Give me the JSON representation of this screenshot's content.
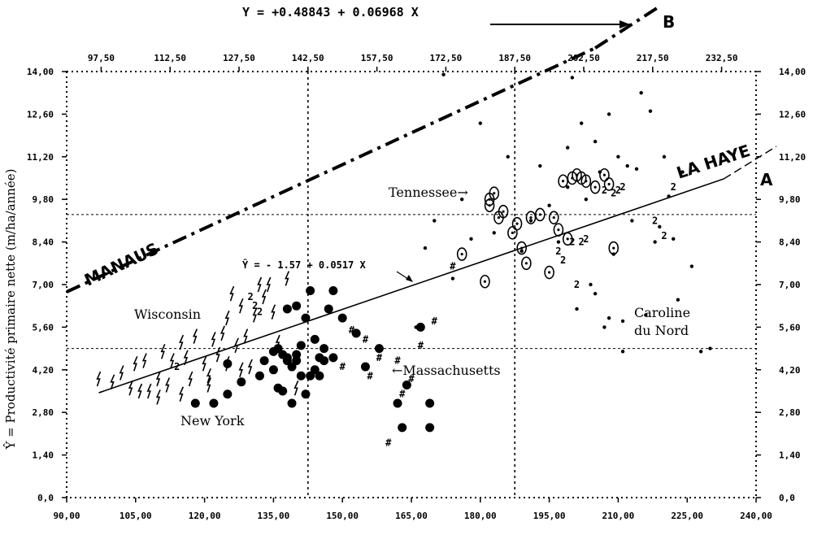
{
  "chart_data": {
    "type": "scatter",
    "title": "Y = +0.48843 + 0.06968 X",
    "ylabel": "Ŷ = Productivité primaire nette (m/ha/année)",
    "x_bottom_ticks": [
      "90,00",
      "105,00",
      "120,00",
      "135,00",
      "150,00",
      "165,00",
      "180,00",
      "195,00",
      "210,00",
      "225,00",
      "240,00"
    ],
    "x_top_ticks": [
      "97,50",
      "112,50",
      "127,50",
      "142,50",
      "157,50",
      "172,50",
      "187,50",
      "202,50",
      "217,50",
      "232,50"
    ],
    "y_ticks": [
      "0,0",
      "1,40",
      "2,80",
      "4,20",
      "5,60",
      "7,00",
      "8,40",
      "9,80",
      "11,20",
      "12,60",
      "14,00"
    ],
    "xlim": [
      90,
      240
    ],
    "ylim": [
      0,
      14
    ],
    "grid": {
      "vlines": [
        142.5,
        187.5
      ],
      "hlines": [
        4.9,
        9.3
      ]
    },
    "lines": [
      {
        "name": "MANAUS",
        "label_end": "B",
        "style": "dash-dot",
        "intercept": 0.48843,
        "slope": 0.06968,
        "x_range": [
          90,
          205
        ]
      },
      {
        "name": "LA HAYE",
        "label_end": "A",
        "style": "solid",
        "intercept": -1.57,
        "slope": 0.0517,
        "x_range": [
          97,
          233
        ]
      }
    ],
    "regression_label": "Ŷ = - 1.57 + 0.0517 X",
    "series": [
      {
        "name": "New York",
        "marker": "filled-circle",
        "x": [
          118,
          122,
          125,
          128,
          132,
          133,
          135,
          136,
          136,
          137,
          137,
          138,
          138,
          139,
          139,
          140,
          140,
          141,
          141,
          142,
          142,
          143,
          143,
          144,
          145,
          145,
          146,
          147,
          148,
          150,
          153,
          155,
          158,
          162,
          163,
          164,
          167,
          169,
          169,
          138,
          140,
          144,
          146,
          148,
          135,
          125
        ],
        "y": [
          3.1,
          3.1,
          3.4,
          3.8,
          4.0,
          4.5,
          4.2,
          4.9,
          3.6,
          3.5,
          4.7,
          6.2,
          4.6,
          4.3,
          3.1,
          4.5,
          6.3,
          4.0,
          5.0,
          5.9,
          3.4,
          4.0,
          6.8,
          5.2,
          4.6,
          4.0,
          4.9,
          6.2,
          4.6,
          5.9,
          5.4,
          4.3,
          4.9,
          3.1,
          2.3,
          3.7,
          5.6,
          3.1,
          2.3,
          4.5,
          4.7,
          4.2,
          4.5,
          6.8,
          4.8,
          4.4
        ]
      },
      {
        "name": "Wisconsin",
        "marker": "lightning",
        "x": [
          97,
          100,
          102,
          104,
          105,
          107,
          108,
          110,
          111,
          112,
          113,
          115,
          116,
          117,
          118,
          120,
          121,
          122,
          123,
          124,
          125,
          126,
          127,
          128,
          129,
          130,
          131,
          132,
          133,
          134,
          135,
          136,
          138,
          140,
          121,
          125,
          128,
          115,
          110,
          106
        ],
        "y": [
          3.9,
          3.8,
          4.1,
          3.6,
          4.4,
          4.5,
          3.5,
          3.3,
          4.8,
          3.7,
          4.5,
          5.1,
          4.6,
          3.9,
          5.3,
          4.4,
          3.7,
          5.2,
          4.7,
          5.4,
          4.4,
          6.7,
          5.0,
          6.3,
          5.3,
          4.3,
          6.0,
          7.0,
          6.6,
          7.0,
          6.1,
          5.1,
          7.2,
          3.6,
          4.0,
          5.9,
          4.2,
          3.4,
          3.9,
          3.5
        ]
      },
      {
        "name": "Massachusetts",
        "marker": "hash",
        "x": [
          150,
          152,
          155,
          156,
          158,
          160,
          162,
          163,
          165,
          167,
          170,
          174
        ],
        "y": [
          4.3,
          5.5,
          5.2,
          4.0,
          4.6,
          1.8,
          4.5,
          3.4,
          3.9,
          5.0,
          5.8,
          7.6
        ]
      },
      {
        "name": "Tennessee",
        "marker": "open-circle",
        "x": [
          176,
          181,
          182,
          183,
          184,
          185,
          187,
          188,
          189,
          190,
          191,
          193,
          195,
          196,
          197,
          198,
          199,
          200,
          201,
          202,
          203,
          205,
          207,
          208,
          209,
          182
        ],
        "y": [
          8.0,
          7.1,
          9.6,
          10.0,
          9.2,
          9.4,
          8.7,
          9.0,
          8.2,
          7.7,
          9.2,
          9.3,
          7.4,
          9.2,
          8.8,
          10.4,
          8.5,
          10.5,
          10.6,
          10.5,
          10.4,
          10.2,
          10.6,
          10.3,
          8.2,
          9.8
        ]
      },
      {
        "name": "Caroline du Nord",
        "marker": "small-dot",
        "x": [
          166,
          168,
          170,
          172,
          174,
          176,
          178,
          180,
          183,
          186,
          189,
          191,
          193,
          195,
          197,
          199,
          200,
          201,
          202,
          203,
          204,
          205,
          206,
          207,
          208,
          209,
          210,
          211,
          212,
          213,
          214,
          215,
          216,
          217,
          218,
          219,
          220,
          221,
          222,
          223,
          224,
          226,
          228,
          230,
          205,
          208,
          211,
          199
        ],
        "y": [
          5.6,
          8.2,
          9.1,
          13.9,
          7.2,
          9.8,
          8.5,
          12.3,
          8.7,
          11.2,
          8.1,
          9.1,
          10.9,
          9.6,
          8.4,
          11.5,
          13.8,
          6.2,
          12.3,
          9.8,
          7.0,
          11.7,
          10.7,
          5.6,
          12.6,
          8.0,
          11.2,
          5.8,
          10.9,
          9.1,
          10.8,
          13.3,
          6.0,
          12.7,
          8.4,
          8.9,
          11.2,
          9.9,
          8.5,
          6.5,
          10.7,
          7.6,
          4.8,
          4.9,
          6.7,
          5.9,
          4.8,
          10.2
        ]
      },
      {
        "name": "2",
        "marker": "digit-2",
        "x": [
          114,
          130,
          131,
          132,
          200,
          201,
          202,
          203,
          207,
          209,
          210,
          211,
          218,
          220,
          222,
          198,
          197
        ],
        "y": [
          4.3,
          6.6,
          6.3,
          6.1,
          8.4,
          7.0,
          8.4,
          8.5,
          10.1,
          10.0,
          10.1,
          10.2,
          9.1,
          8.6,
          10.2,
          7.8,
          8.1
        ]
      }
    ],
    "annotations": [
      "Tennessee",
      "Wisconsin",
      "New York",
      "Massachusetts",
      "Caroline\ndu Nord",
      "MANAUS",
      "LA HAYE",
      "A",
      "B"
    ]
  }
}
